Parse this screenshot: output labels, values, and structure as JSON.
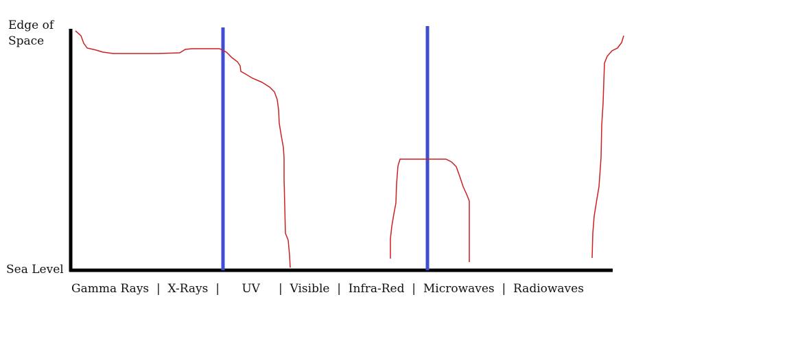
{
  "y_axis": {
    "top_label": "Edge of\nSpace",
    "bottom_label": "Sea Level"
  },
  "bands": {
    "text": "Gamma Rays  |  X-Rays  |      UV     |  Visible  |  Infra-Red  |  Microwaves  |  Radiowaves"
  },
  "colors": {
    "axis": "#000000",
    "divider": "#3f4fd0",
    "curve": "#cc1f1f"
  }
}
